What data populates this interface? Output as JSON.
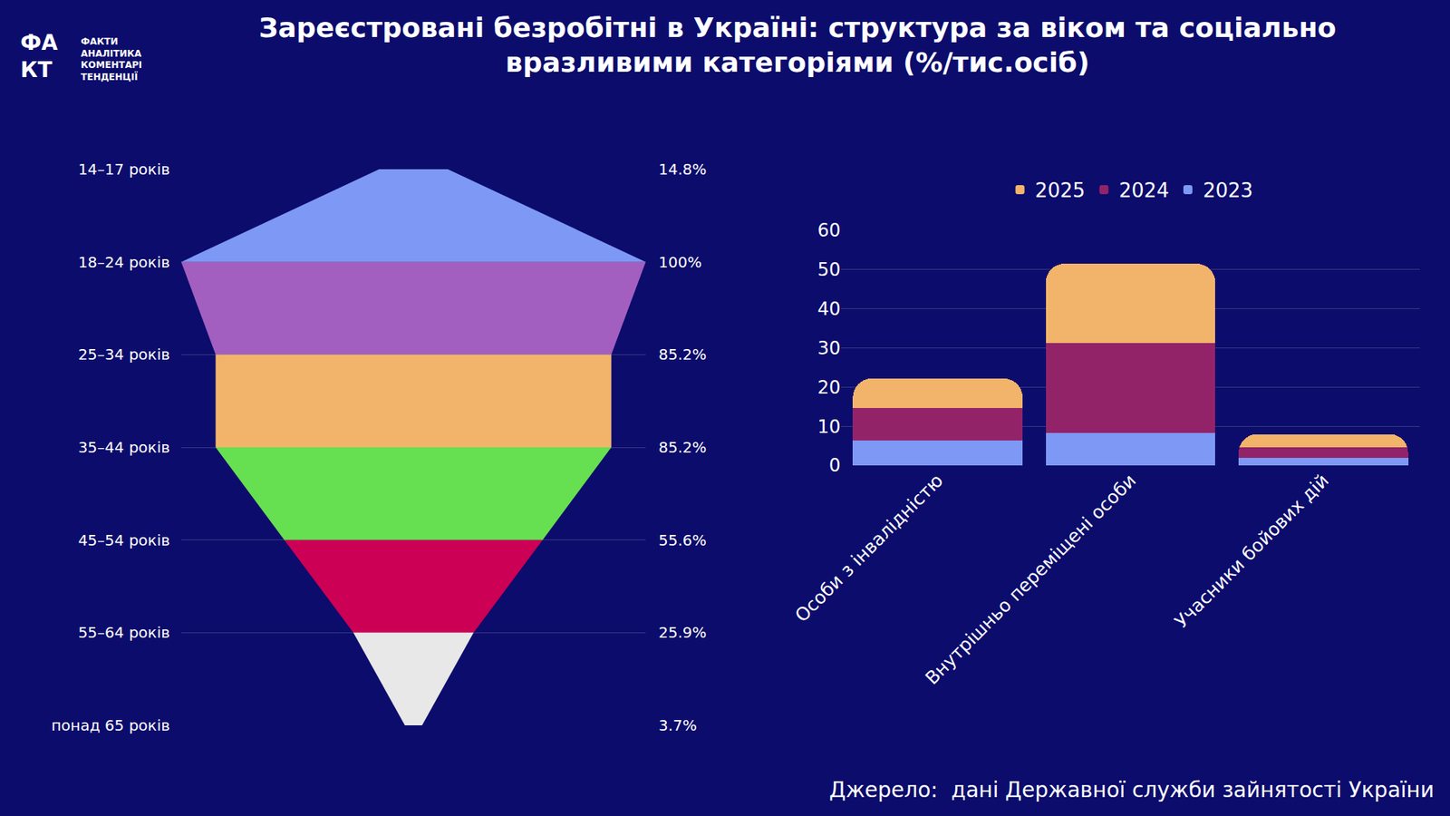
{
  "title": "Зареєстровані безробітні в Україні: структура за віком та соціально вразливими категоріями (%/тис.осіб)",
  "source": "Джерело:  дані Державної служби зайнятості України",
  "logo": {
    "mark": [
      "ФА",
      "КТ"
    ],
    "lines": [
      "ФАКТИ",
      "АНАЛІТИКА",
      "КОМЕНТАРІ",
      "ТЕНДЕНЦІЇ"
    ]
  },
  "chart_data": [
    {
      "type": "funnel",
      "categories": [
        "14–17 років",
        "18–24 років",
        "25–34 років",
        "35–44 років",
        "45–54 років",
        "55–64 років",
        "понад 65 років"
      ],
      "values": [
        14.8,
        100,
        85.2,
        85.2,
        55.6,
        25.9,
        3.7
      ],
      "value_labels": [
        "14.8%",
        "100%",
        "85.2%",
        "85.2%",
        "55.6%",
        "25.9%",
        "3.7%"
      ],
      "data_labels": true,
      "colors": [
        "#7e98f5",
        "#a35fbf",
        "#f2b46b",
        "#66e050",
        "#cc0055",
        "#e8e8e8"
      ],
      "grid": true,
      "tick_labels": "y"
    },
    {
      "type": "bar",
      "stacked": true,
      "categories": [
        "Особи з інвалідністю",
        "Внутрішньо переміщені особи",
        "Учасники бойових дій"
      ],
      "series": [
        {
          "name": "2023",
          "color": "#7e98f5",
          "values": [
            6.4,
            8.3,
            1.9
          ]
        },
        {
          "name": "2024",
          "color": "#922369",
          "values": [
            8.3,
            22.9,
            2.8
          ]
        },
        {
          "name": "2025",
          "color": "#f2b46b",
          "values": [
            7.5,
            20.3,
            3.3
          ]
        }
      ],
      "ylim": [
        0,
        60
      ],
      "yticks": [
        0,
        10,
        20,
        30,
        40,
        50,
        60
      ],
      "grid": true,
      "legend": "top"
    }
  ]
}
